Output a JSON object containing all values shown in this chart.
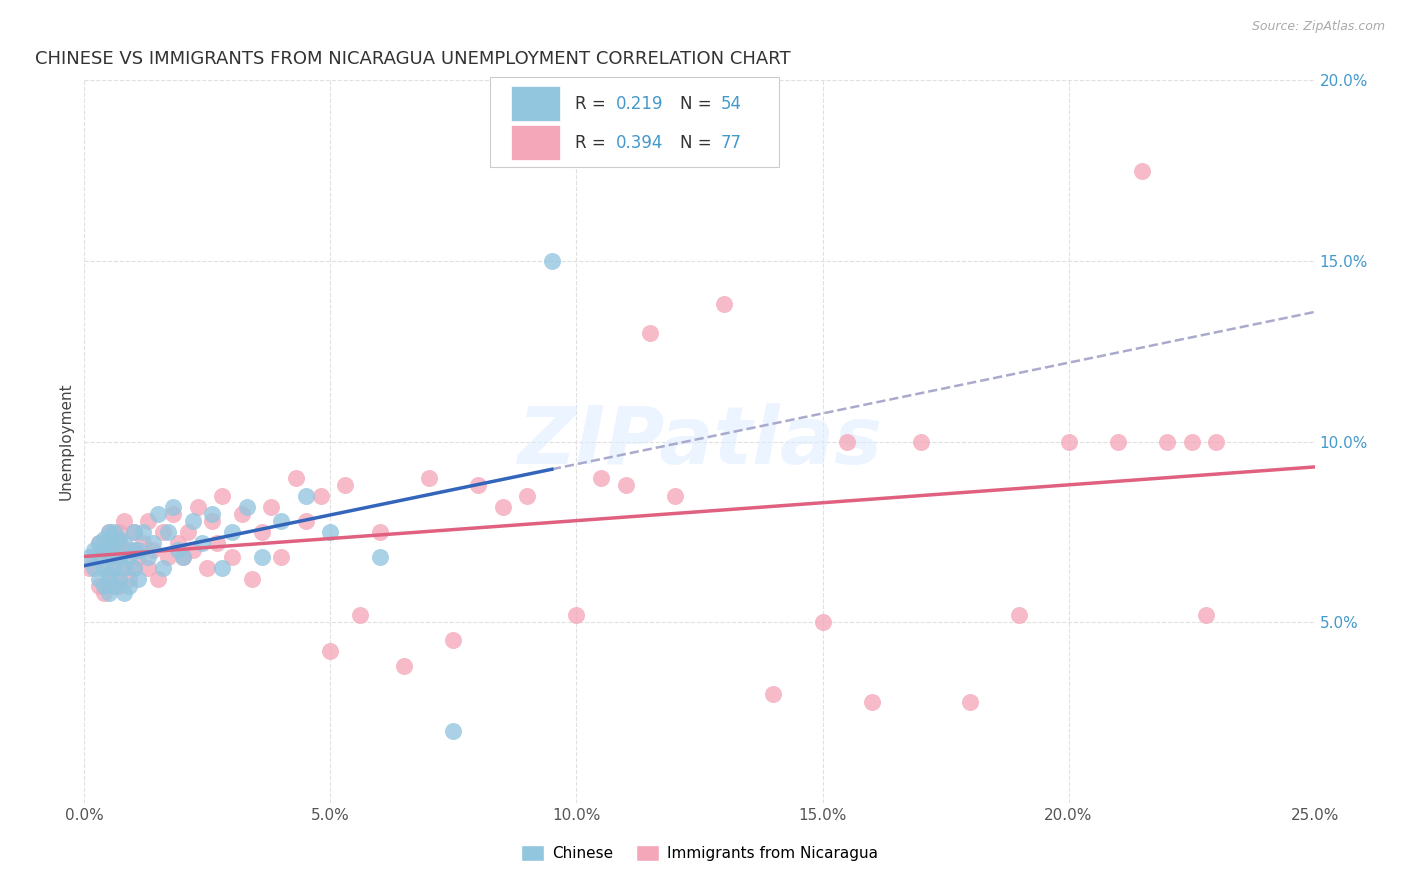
{
  "title": "CHINESE VS IMMIGRANTS FROM NICARAGUA UNEMPLOYMENT CORRELATION CHART",
  "source": "Source: ZipAtlas.com",
  "ylabel": "Unemployment",
  "xlim": [
    0.0,
    0.25
  ],
  "ylim": [
    0.0,
    0.2
  ],
  "chinese_color": "#92c5de",
  "nicaragua_color": "#f4a7b9",
  "blue_line_color": "#3366bb",
  "pink_line_color": "#e06080",
  "legend_label1": "Chinese",
  "legend_label2": "Immigrants from Nicaragua",
  "watermark": "ZIPatlas",
  "title_fontsize": 13,
  "axis_label_fontsize": 11,
  "tick_fontsize": 11,
  "R1": "0.219",
  "N1": "54",
  "R2": "0.394",
  "N2": "77",
  "accent_color": "#4499cc",
  "chinese_x": [
    0.001,
    0.002,
    0.002,
    0.003,
    0.003,
    0.003,
    0.004,
    0.004,
    0.004,
    0.004,
    0.005,
    0.005,
    0.005,
    0.005,
    0.005,
    0.006,
    0.006,
    0.006,
    0.006,
    0.007,
    0.007,
    0.007,
    0.008,
    0.008,
    0.008,
    0.009,
    0.009,
    0.01,
    0.01,
    0.01,
    0.011,
    0.011,
    0.012,
    0.013,
    0.014,
    0.015,
    0.016,
    0.017,
    0.018,
    0.019,
    0.02,
    0.022,
    0.024,
    0.026,
    0.028,
    0.03,
    0.033,
    0.036,
    0.04,
    0.045,
    0.05,
    0.06,
    0.075,
    0.095
  ],
  "chinese_y": [
    0.068,
    0.07,
    0.065,
    0.062,
    0.068,
    0.072,
    0.06,
    0.065,
    0.07,
    0.073,
    0.058,
    0.063,
    0.068,
    0.072,
    0.075,
    0.06,
    0.065,
    0.07,
    0.075,
    0.062,
    0.068,
    0.073,
    0.058,
    0.065,
    0.072,
    0.06,
    0.068,
    0.065,
    0.07,
    0.075,
    0.062,
    0.07,
    0.075,
    0.068,
    0.072,
    0.08,
    0.065,
    0.075,
    0.082,
    0.07,
    0.068,
    0.078,
    0.072,
    0.08,
    0.065,
    0.075,
    0.082,
    0.068,
    0.078,
    0.085,
    0.075,
    0.068,
    0.02,
    0.15
  ],
  "nicaragua_x": [
    0.001,
    0.002,
    0.003,
    0.003,
    0.004,
    0.004,
    0.005,
    0.005,
    0.005,
    0.006,
    0.006,
    0.007,
    0.007,
    0.007,
    0.008,
    0.008,
    0.009,
    0.009,
    0.01,
    0.01,
    0.011,
    0.012,
    0.013,
    0.013,
    0.014,
    0.015,
    0.016,
    0.017,
    0.018,
    0.019,
    0.02,
    0.021,
    0.022,
    0.023,
    0.025,
    0.026,
    0.027,
    0.028,
    0.03,
    0.032,
    0.034,
    0.036,
    0.038,
    0.04,
    0.043,
    0.045,
    0.048,
    0.05,
    0.053,
    0.056,
    0.06,
    0.065,
    0.07,
    0.075,
    0.08,
    0.085,
    0.09,
    0.1,
    0.105,
    0.11,
    0.115,
    0.12,
    0.13,
    0.14,
    0.15,
    0.155,
    0.16,
    0.17,
    0.18,
    0.19,
    0.2,
    0.21,
    0.215,
    0.22,
    0.225,
    0.228,
    0.23
  ],
  "nicaragua_y": [
    0.065,
    0.068,
    0.06,
    0.072,
    0.058,
    0.07,
    0.065,
    0.07,
    0.075,
    0.062,
    0.068,
    0.06,
    0.072,
    0.075,
    0.065,
    0.078,
    0.062,
    0.07,
    0.065,
    0.075,
    0.068,
    0.072,
    0.065,
    0.078,
    0.07,
    0.062,
    0.075,
    0.068,
    0.08,
    0.072,
    0.068,
    0.075,
    0.07,
    0.082,
    0.065,
    0.078,
    0.072,
    0.085,
    0.068,
    0.08,
    0.062,
    0.075,
    0.082,
    0.068,
    0.09,
    0.078,
    0.085,
    0.042,
    0.088,
    0.052,
    0.075,
    0.038,
    0.09,
    0.045,
    0.088,
    0.082,
    0.085,
    0.052,
    0.09,
    0.088,
    0.13,
    0.085,
    0.138,
    0.03,
    0.05,
    0.1,
    0.028,
    0.1,
    0.028,
    0.052,
    0.1,
    0.1,
    0.175,
    0.1,
    0.1,
    0.052,
    0.1
  ]
}
